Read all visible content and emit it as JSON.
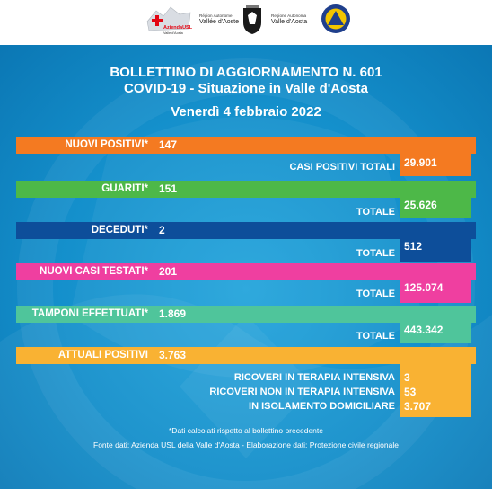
{
  "header": {
    "logo_usl_text": "AziendaUSL",
    "logo_usl_sub": "Valle d'Aosta",
    "logo_regione_line1": "Région Autonome",
    "logo_regione_line2": "Vallée d'Aoste",
    "logo_regione2_line1": "Regione Autonoma",
    "logo_regione2_line2": "Valle d'Aosta"
  },
  "title": {
    "line1": "BOLLETTINO DI AGGIORNAMENTO N. 601",
    "line2": "COVID-19 - Situazione in Valle d'Aosta",
    "line3": "Venerdì 4 febbraio 2022"
  },
  "rows": {
    "nuovi_positivi": {
      "label": "NUOVI POSITIVI*",
      "value": "147",
      "total_label": "CASI POSITIVI TOTALI",
      "total_value": "29.901",
      "color": "#f47a21"
    },
    "guariti": {
      "label": "GUARITI*",
      "value": "151",
      "total_label": "TOTALE",
      "total_value": "25.626",
      "color": "#4db848"
    },
    "deceduti": {
      "label": "DECEDUTI*",
      "value": "2",
      "total_label": "TOTALE",
      "total_value": "512",
      "color": "#0d4e9a"
    },
    "nuovi_casi_testati": {
      "label": "NUOVI CASI TESTATI*",
      "value": "201",
      "total_label": "TOTALE",
      "total_value": "125.074",
      "color": "#ef3fa0"
    },
    "tamponi": {
      "label": "TAMPONI EFFETTUATI*",
      "value": "1.869",
      "total_label": "TOTALE",
      "total_value": "443.342",
      "color": "#4fc59b"
    },
    "attuali_positivi": {
      "label": "ATTUALI POSITIVI",
      "value": "3.763",
      "color": "#f9b233",
      "details": [
        {
          "label": "RICOVERI IN TERAPIA INTENSIVA",
          "value": "3"
        },
        {
          "label": "RICOVERI NON IN TERAPIA INTENSIVA",
          "value": "53"
        },
        {
          "label": "IN ISOLAMENTO DOMICILIARE",
          "value": "3.707"
        }
      ]
    }
  },
  "footer": {
    "note": "*Dati calcolati rispetto al bollettino precedente",
    "source": "Fonte dati: Azienda USL della Valle d'Aosta - Elaborazione dati: Protezione civile regionale"
  }
}
